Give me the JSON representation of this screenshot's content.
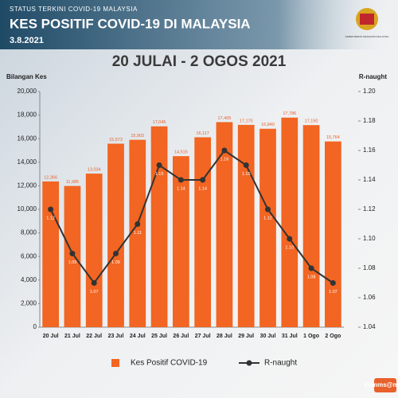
{
  "header": {
    "status": "STATUS TERKINI COVID-19 MALAYSIA",
    "title": "KES POSITIF COVID-19 DI MALAYSIA",
    "date": "3.8.2021",
    "crest_caption": "KEMENTERIAN KESIHATAN MALAYSIA"
  },
  "footer": "comms@moh",
  "chart_data": {
    "type": "bar",
    "title": "20 JULAI - 2 OGOS 2021",
    "ylabel": "Bilangan Kes",
    "y2label": "R-naught",
    "categories": [
      "20 Jul",
      "21 Jul",
      "22 Jul",
      "23 Jul",
      "24 Jul",
      "25 Jul",
      "26 Jul",
      "27 Jul",
      "28 Jul",
      "29 Jul",
      "30 Jul",
      "31 Jul",
      "1 Ogo",
      "2 Ogo"
    ],
    "series": [
      {
        "name": "Kes Positif COVID-19",
        "type": "bar",
        "color": "#f26522",
        "values": [
          12366,
          11985,
          13034,
          15573,
          15902,
          17045,
          14516,
          16117,
          17405,
          17170,
          16840,
          17786,
          17150,
          15764
        ],
        "value_labels": [
          "12,366",
          "11,985",
          "13,034",
          "15,573",
          "15,902",
          "17,045",
          "14,516",
          "16,117",
          "17,405",
          "17,170",
          "16,840",
          "17,786",
          "17,150",
          "15,764"
        ]
      },
      {
        "name": "R-naught",
        "type": "line",
        "axis": "y2",
        "color": "#333333",
        "values": [
          1.12,
          1.09,
          1.07,
          1.09,
          1.11,
          1.15,
          1.14,
          1.14,
          1.16,
          1.15,
          1.12,
          1.1,
          1.08,
          1.07
        ],
        "value_labels": [
          "1.12",
          "1.09",
          "1.07",
          "1.09",
          "1.11",
          "1.15",
          "1.14",
          "1.14",
          "1.16",
          "1.15",
          "1.12",
          "1.10",
          "1.08",
          "1.07"
        ]
      }
    ],
    "ylim": [
      0,
      20000
    ],
    "yticks": [
      0,
      {
        "value": 2000,
        "label": "2,000"
      },
      {
        "value": 4000,
        "label": "4,000"
      },
      {
        "value": 6000,
        "label": "6,000"
      },
      {
        "value": 8000,
        "label": "8,000"
      },
      {
        "value": 10000,
        "label": "10,000"
      },
      {
        "value": 12000,
        "label": "12,000"
      },
      {
        "value": 14000,
        "label": "14,000"
      },
      {
        "value": 16000,
        "label": "16,000"
      },
      {
        "value": 18000,
        "label": "18,000"
      },
      {
        "value": 20000,
        "label": "20,000"
      }
    ],
    "y2lim": [
      1.04,
      1.2
    ],
    "y2ticks": [
      1.04,
      1.06,
      1.08,
      {
        "value": 1.1,
        "label": "1.10"
      },
      1.12,
      1.14,
      1.16,
      1.18,
      {
        "value": 1.2,
        "label": "1.20"
      }
    ],
    "grid": false,
    "legend": "bottom"
  }
}
